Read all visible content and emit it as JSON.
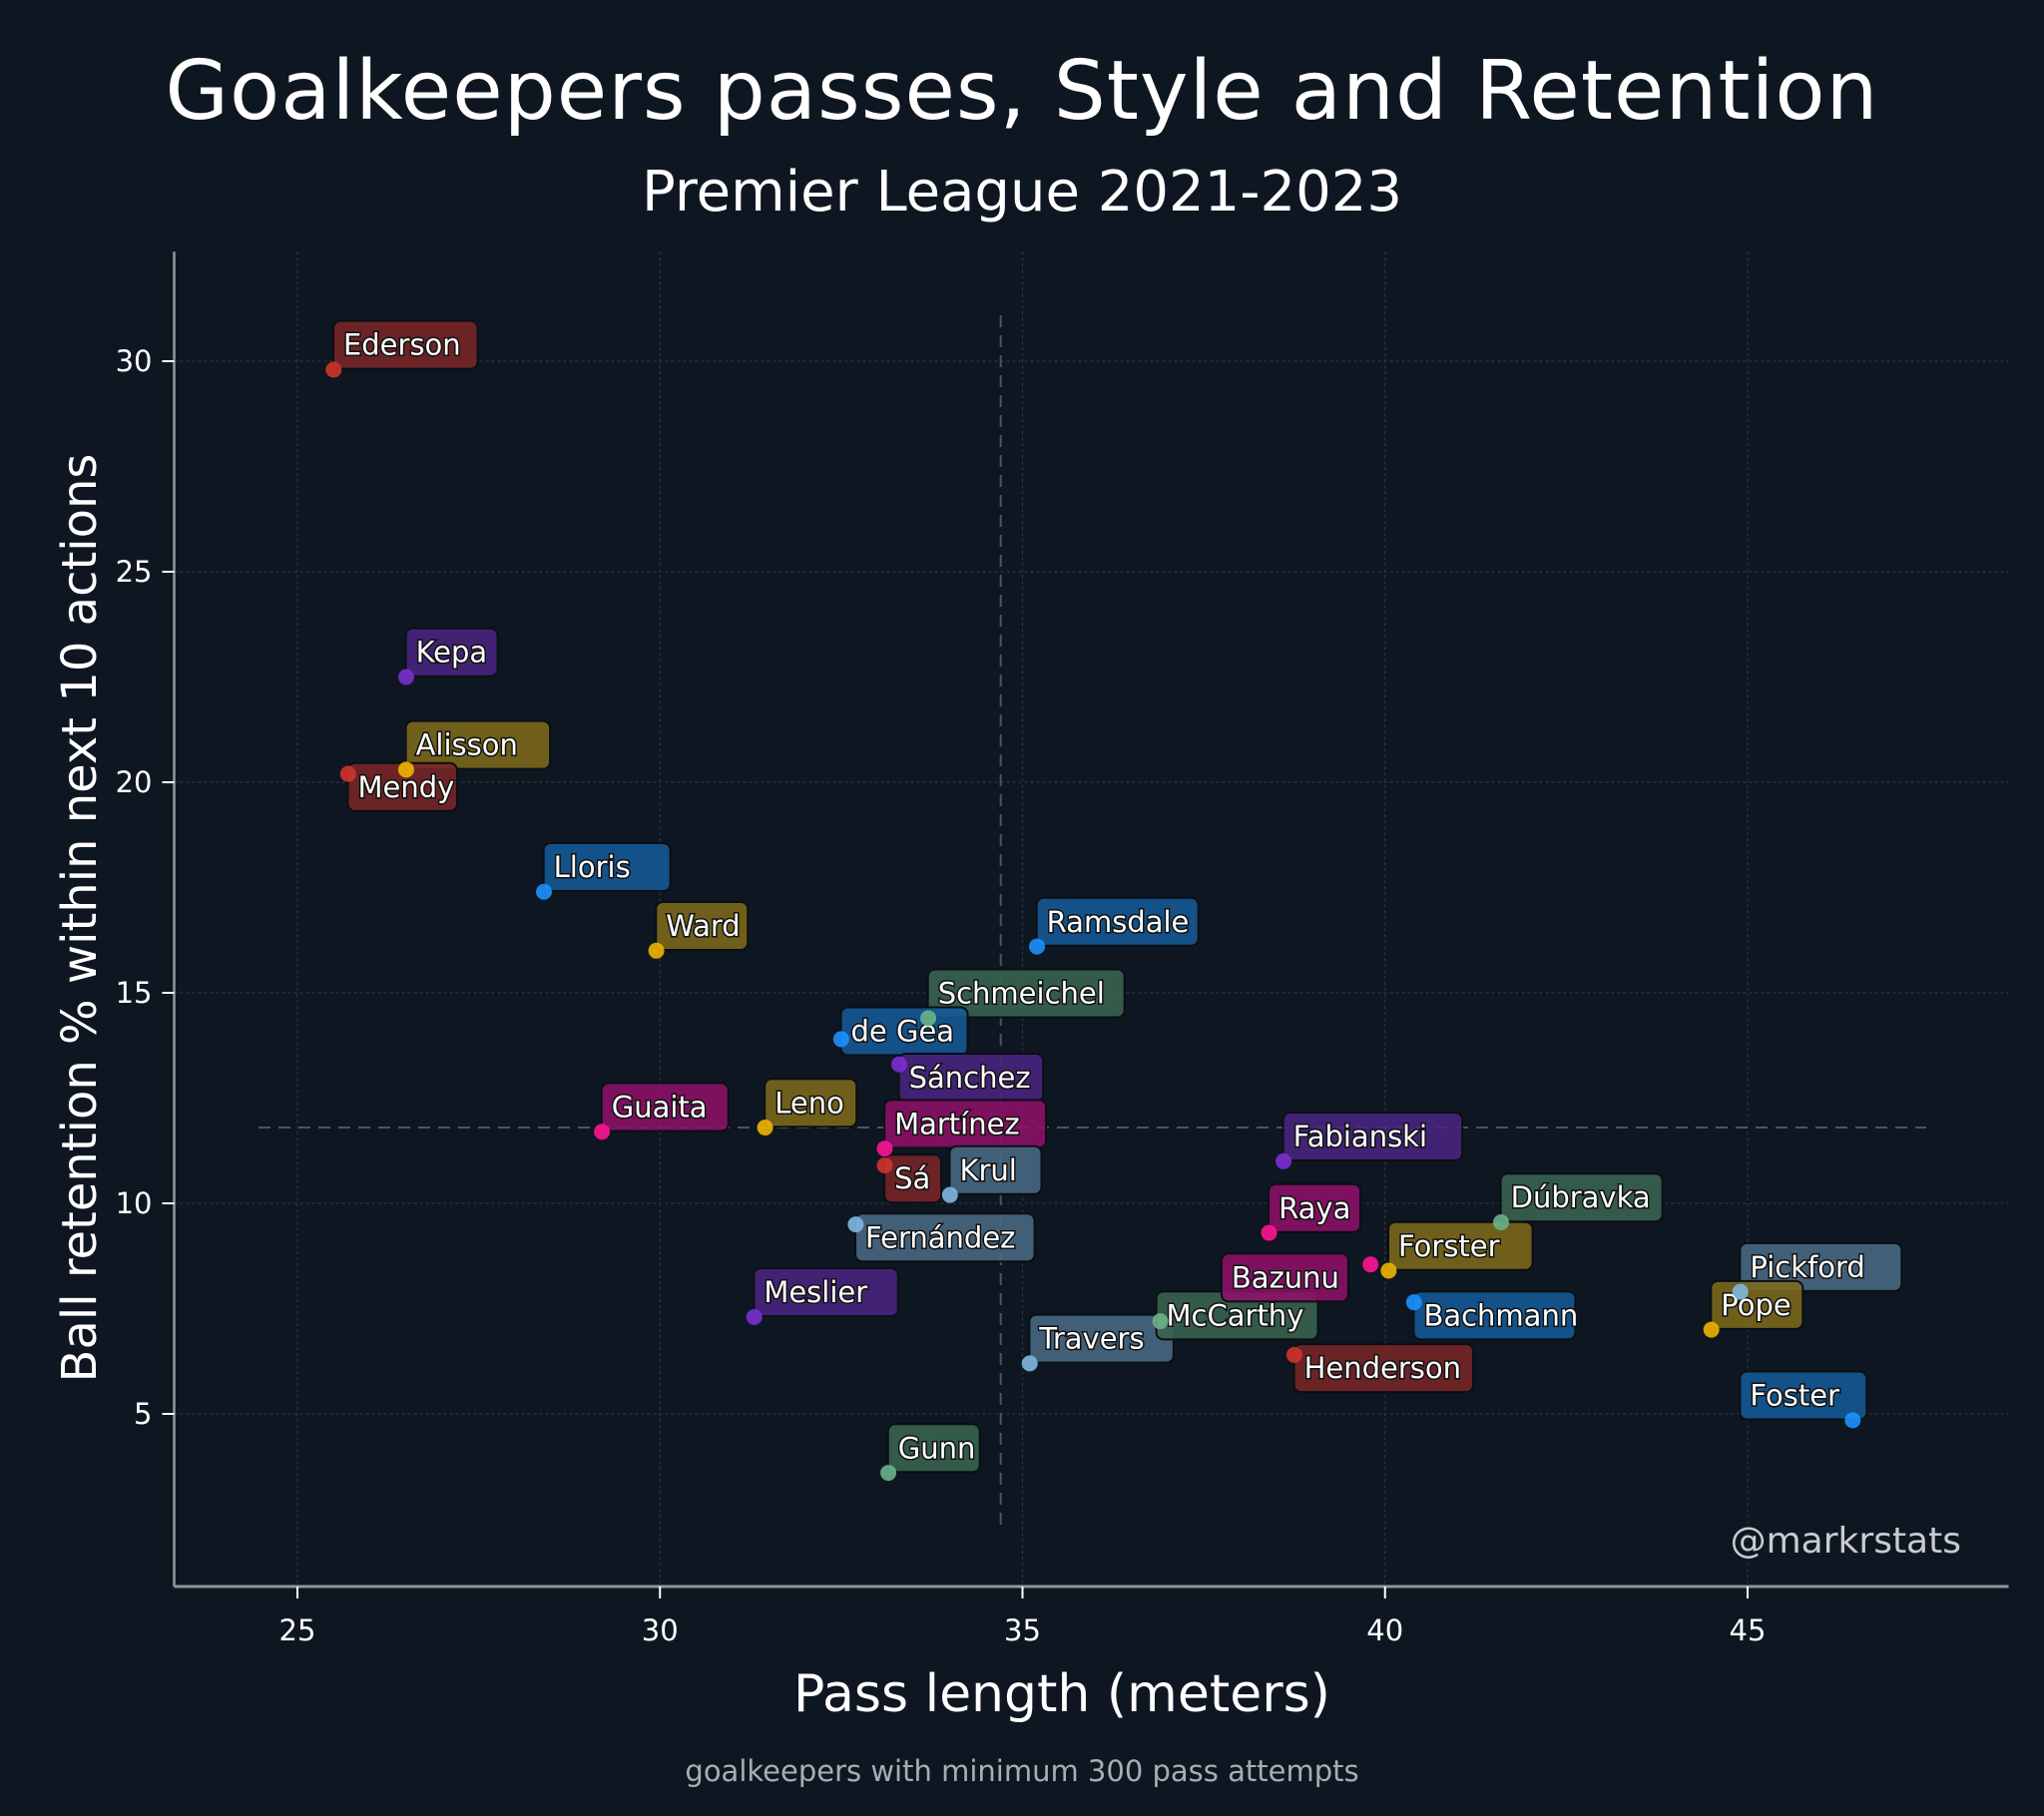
{
  "header": {
    "title": "Goalkeepers passes, Style and Retention",
    "subtitle": "Premier League 2021-2023"
  },
  "axes": {
    "xlabel": "Pass length (meters)",
    "ylabel": "Ball retention % within next 10 actions"
  },
  "footnote": "goalkeepers with minimum 300 pass attempts",
  "watermark": "@markrstats",
  "colors": {
    "background": "#0e1721",
    "axis": "#8a9a98",
    "grid": "#2a3541",
    "mean_line": "#4a5560",
    "red": {
      "dot": "#d0342c",
      "box": "#7a2626"
    },
    "purple": {
      "dot": "#7b2fcf",
      "box": "#4a2480"
    },
    "gold": {
      "dot": "#f0b400",
      "box": "#7d6a1a"
    },
    "blue": {
      "dot": "#1e90ff",
      "box": "#155a96"
    },
    "green": {
      "dot": "#6bb38a",
      "box": "#3a6450"
    },
    "pink": {
      "dot": "#ff1493",
      "box": "#8e1069"
    },
    "steel": {
      "dot": "#7fb8e0",
      "box": "#4a6a84"
    }
  },
  "chart_data": {
    "type": "scatter",
    "title": "Goalkeepers passes, Style and Retention",
    "subtitle": "Premier League 2021-2023",
    "xlabel": "Pass length (meters)",
    "ylabel": "Ball retention % within next 10 actions",
    "xlim": [
      23.3,
      48.6
    ],
    "ylim": [
      0.9,
      32.6
    ],
    "xticks": [
      25,
      30,
      35,
      40,
      45
    ],
    "yticks": [
      5,
      10,
      15,
      20,
      25,
      30
    ],
    "grid": true,
    "legend": null,
    "reference_lines": {
      "mean_x": 34.7,
      "mean_y": 11.8
    },
    "points": [
      {
        "name": "Ederson",
        "x": 25.5,
        "y": 29.8,
        "color": "red",
        "lx": 0.05,
        "ly": 0.35
      },
      {
        "name": "Kepa",
        "x": 26.5,
        "y": 22.5,
        "color": "purple",
        "lx": 0.05,
        "ly": 0.35
      },
      {
        "name": "Alisson",
        "x": 26.5,
        "y": 20.3,
        "color": "gold",
        "lx": 0.05,
        "ly": 0.35
      },
      {
        "name": "Mendy",
        "x": 25.7,
        "y": 20.2,
        "color": "red",
        "lx": 0.05,
        "ly": -0.55
      },
      {
        "name": "Lloris",
        "x": 28.4,
        "y": 17.4,
        "color": "blue",
        "lx": 0.05,
        "ly": 0.35
      },
      {
        "name": "Ward",
        "x": 29.95,
        "y": 16.0,
        "color": "gold",
        "lx": 0.05,
        "ly": 0.35
      },
      {
        "name": "Ramsdale",
        "x": 35.2,
        "y": 16.1,
        "color": "blue",
        "lx": 0.05,
        "ly": 0.35
      },
      {
        "name": "Schmeichel",
        "x": 33.7,
        "y": 14.4,
        "color": "green",
        "lx": 0.05,
        "ly": 0.35
      },
      {
        "name": "de Gea",
        "x": 32.5,
        "y": 13.9,
        "color": "blue",
        "lx": 0.05,
        "ly": -0.05
      },
      {
        "name": "Sánchez",
        "x": 33.3,
        "y": 13.3,
        "color": "purple",
        "lx": 0.05,
        "ly": -0.55
      },
      {
        "name": "Guaita",
        "x": 29.2,
        "y": 11.7,
        "color": "pink",
        "lx": 0.05,
        "ly": 0.35
      },
      {
        "name": "Leno",
        "x": 31.45,
        "y": 11.8,
        "color": "gold",
        "lx": 0.05,
        "ly": 0.35
      },
      {
        "name": "Martínez",
        "x": 33.1,
        "y": 11.3,
        "color": "pink",
        "lx": 0.05,
        "ly": 0.35
      },
      {
        "name": "Sá",
        "x": 33.1,
        "y": 10.9,
        "color": "red",
        "lx": 0.05,
        "ly": -0.55
      },
      {
        "name": "Krul",
        "x": 34.0,
        "y": 10.2,
        "color": "steel",
        "lx": 0.05,
        "ly": 0.35
      },
      {
        "name": "Fernández",
        "x": 32.7,
        "y": 9.5,
        "color": "steel",
        "lx": 0.05,
        "ly": -0.55
      },
      {
        "name": "Meslier",
        "x": 31.3,
        "y": 7.3,
        "color": "purple",
        "lx": 0.05,
        "ly": 0.35
      },
      {
        "name": "Gunn",
        "x": 33.15,
        "y": 3.6,
        "color": "green",
        "lx": 0.05,
        "ly": 0.35
      },
      {
        "name": "Travers",
        "x": 35.1,
        "y": 6.2,
        "color": "steel",
        "lx": 0.05,
        "ly": 0.35
      },
      {
        "name": "McCarthy",
        "x": 36.9,
        "y": 7.2,
        "color": "green",
        "lx": 0.0,
        "ly": -0.1
      },
      {
        "name": "Henderson",
        "x": 38.75,
        "y": 6.4,
        "color": "red",
        "lx": 0.05,
        "ly": -0.55
      },
      {
        "name": "Fabianski",
        "x": 38.6,
        "y": 11.0,
        "color": "purple",
        "lx": 0.05,
        "ly": 0.35
      },
      {
        "name": "Raya",
        "x": 38.4,
        "y": 9.3,
        "color": "pink",
        "lx": 0.05,
        "ly": 0.35
      },
      {
        "name": "Dúbravka",
        "x": 41.6,
        "y": 9.55,
        "color": "green",
        "lx": 0.05,
        "ly": 0.35
      },
      {
        "name": "Bazunu",
        "x": 39.8,
        "y": 8.55,
        "color": "pink",
        "lx": -2.0,
        "ly": -0.55
      },
      {
        "name": "Forster",
        "x": 40.05,
        "y": 8.4,
        "color": "gold",
        "lx": 0.05,
        "ly": 0.35
      },
      {
        "name": "Bachmann",
        "x": 40.4,
        "y": 7.65,
        "color": "blue",
        "lx": 0.05,
        "ly": -0.55
      },
      {
        "name": "Pickford",
        "x": 44.9,
        "y": 7.9,
        "color": "steel",
        "lx": 0.05,
        "ly": 0.35
      },
      {
        "name": "Pope",
        "x": 44.5,
        "y": 7.0,
        "color": "gold",
        "lx": 0.05,
        "ly": 0.35
      },
      {
        "name": "Foster",
        "x": 46.45,
        "y": 4.85,
        "color": "blue",
        "lx": -1.5,
        "ly": 0.35
      }
    ]
  }
}
